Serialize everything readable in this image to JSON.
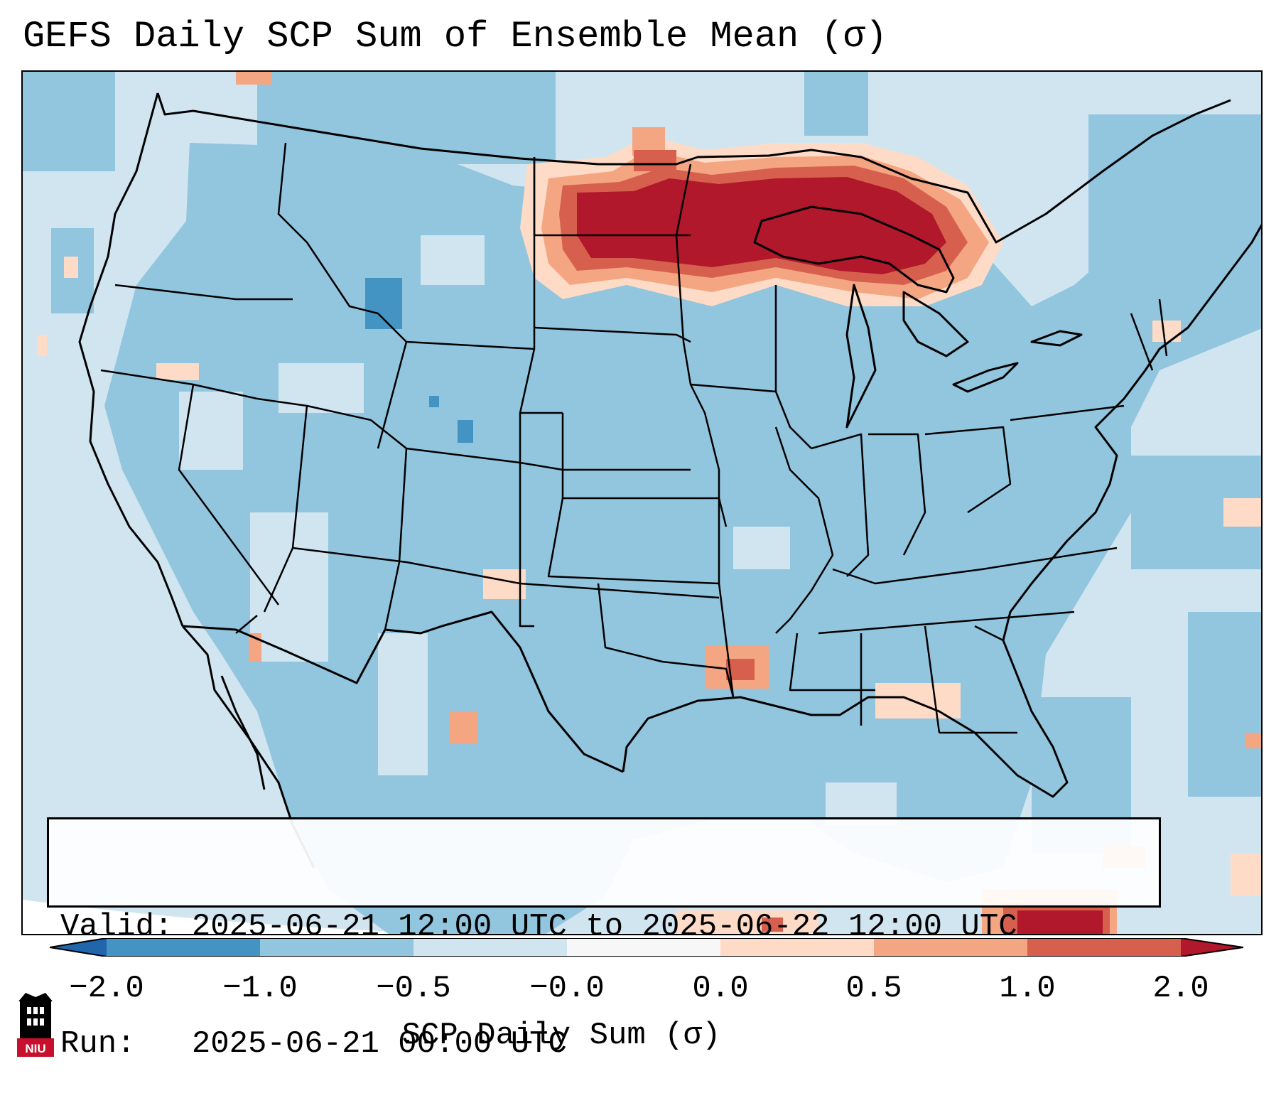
{
  "title": "GEFS Daily SCP Sum of Ensemble Mean (σ)",
  "info": {
    "valid_label": "Valid:",
    "valid_value": "2025-06-21 12:00 UTC to 2025-06-22 12:00 UTC",
    "run_label": "Run:",
    "run_value": "2025-06-21 00:00 UTC"
  },
  "colorbar": {
    "label": "SCP Daily Sum (σ)",
    "ticks": [
      "−2.0",
      "−1.0",
      "−0.5",
      "−0.0",
      "0.0",
      "0.5",
      "1.0",
      "2.0"
    ],
    "colors": {
      "under": "#2166ac",
      "bin1": "#4393c3",
      "bin2": "#92c5de",
      "bin3": "#d1e5f0",
      "bin4": "#f7f7f7",
      "bin5": "#fddbc7",
      "bin6": "#f4a582",
      "bin7": "#d6604d",
      "over": "#b2182b"
    }
  },
  "map": {
    "region": "Contiguous United States",
    "colors": {
      "background": "#d1e5f0",
      "mid_blue": "#92c5de",
      "dark_blue": "#4393c3",
      "light_red": "#fddbc7",
      "mid_red": "#f4a582",
      "red": "#d6604d",
      "dark_red": "#b2182b",
      "borders": "#000000"
    }
  },
  "logo": {
    "text": "NIU",
    "primary": "#c8102e",
    "secondary": "#000000"
  }
}
